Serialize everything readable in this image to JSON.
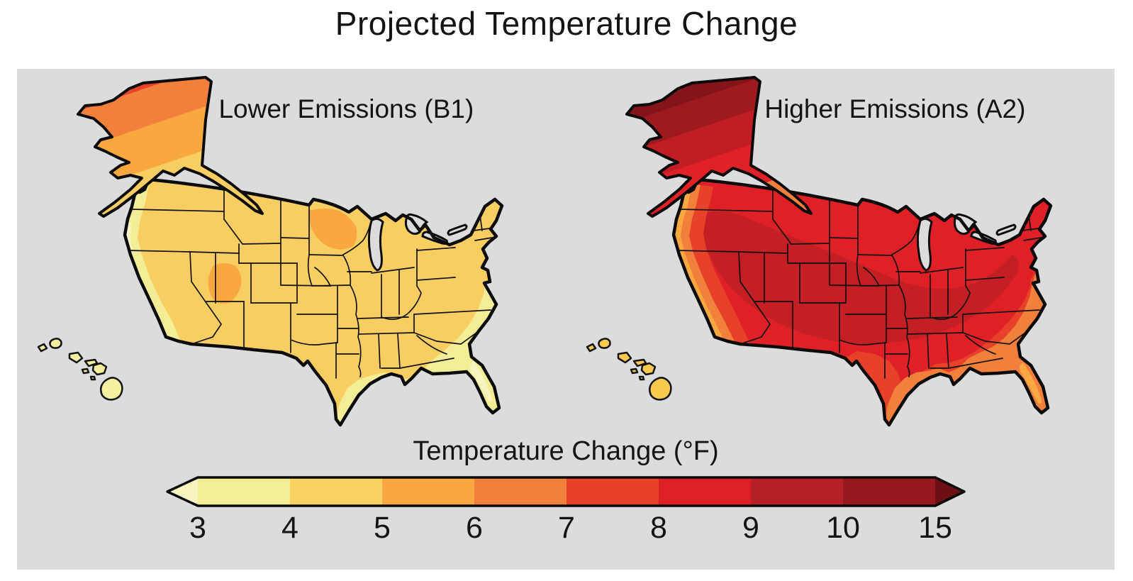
{
  "title": "Projected Temperature Change",
  "panel": {
    "background": "#DBDCDE"
  },
  "maps": [
    {
      "id": "b1",
      "label": "Lower Emissions (B1)",
      "palette": {
        "base": "#F8CE63",
        "coast_pale": "#F3EE96",
        "coast_cream": "#F8F5C2",
        "southeast": "#F3EE96",
        "southeast_core": "#F8F5C2",
        "hotspot": "#F9A73F",
        "alaska_stops": [
          "#E8412A",
          "#F1803C",
          "#F9A73F",
          "#F8CE63"
        ],
        "hawaii": "#F5F0A0"
      }
    },
    {
      "id": "a2",
      "label": "Higher Emissions (A2)",
      "palette": {
        "base": "#DF2127",
        "band": "#C41F24",
        "transition": "#E8412A",
        "southeast": "#F1803C",
        "southeast_core": "#F9A943",
        "coast_outer": "#F9A73F",
        "coast_mid": "#F1803C",
        "coast_ring": "#E8412A",
        "alaska_stops": [
          "#841419",
          "#9E1A1F",
          "#C01E24",
          "#DF2127",
          "#F1803C"
        ],
        "hawaii": "#F8C84F"
      }
    }
  ],
  "legend": {
    "title": "Temperature Change (°F)",
    "ticks": [
      "3",
      "4",
      "5",
      "6",
      "7",
      "8",
      "9",
      "10",
      "15"
    ],
    "segments": [
      "#F3EE96",
      "#FAD263",
      "#F9A740",
      "#F1803C",
      "#E8412A",
      "#DC2026",
      "#B42025",
      "#97191E"
    ],
    "arrow_left": "#F7F4BE",
    "arrow_right": "#6E1013",
    "outline": "#0B0B0B",
    "line_color": "#111111"
  }
}
